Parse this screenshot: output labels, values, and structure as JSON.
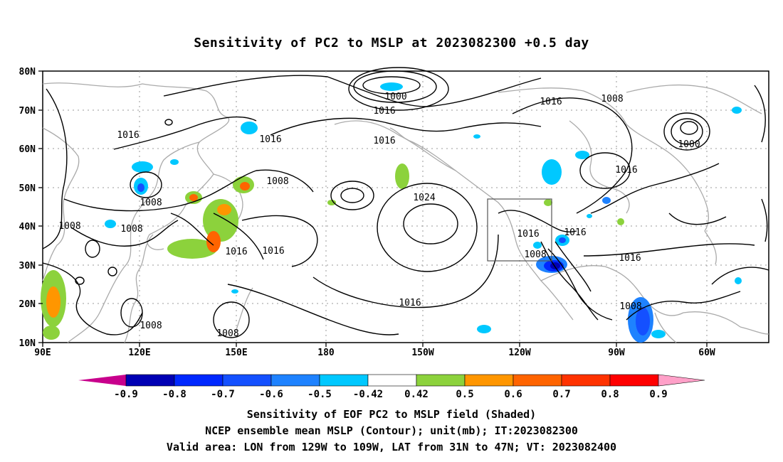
{
  "title": "Sensitivity of PC2 to MSLP at 2023082300 +0.5 day",
  "lat_ticks": [
    "80N",
    "70N",
    "60N",
    "50N",
    "40N",
    "30N",
    "20N",
    "10N"
  ],
  "lon_ticks": [
    "90E",
    "120E",
    "150E",
    "180",
    "150W",
    "120W",
    "90W",
    "60W"
  ],
  "contour_labels": {
    "c1000a": "1000",
    "c1016a": "1016",
    "c1016b": "1016",
    "c1016c": "1016",
    "c1016d": "1016",
    "c1008a": "1008",
    "c1016e": "1016",
    "c1000b": "1000",
    "c1016f": "1016",
    "c1008b": "1008",
    "c1008c": "1008",
    "c1024": "1024",
    "c1008d": "1008",
    "c1008e": "1008",
    "c1016g": "1016",
    "c1016h": "1016",
    "c1016i": "1016",
    "c1016j": "1016",
    "c1008f": "1008",
    "c1016k": "1016",
    "c1016l": "1016",
    "c1008g": "1008",
    "c1008h": "1008",
    "c1008i": "1008"
  },
  "colorbar": {
    "labels": [
      "-0.9",
      "-0.8",
      "-0.7",
      "-0.6",
      "-0.5",
      "-0.42",
      "0.42",
      "0.5",
      "0.6",
      "0.7",
      "0.8",
      "0.9"
    ],
    "colors": [
      "#c8008c",
      "#0000b4",
      "#0028ff",
      "#1450ff",
      "#1e82ff",
      "#00c8ff",
      "#ffffff",
      "#8cd23c",
      "#ff9600",
      "#ff6400",
      "#ff3200",
      "#ff0000",
      "#ffa0c8"
    ]
  },
  "captions": [
    "Sensitivity of EOF PC2 to MSLP field (Shaded)",
    "NCEP ensemble mean MSLP (Contour); unit(mb); IT:2023082300",
    "Valid area: LON from 129W to 109W, LAT from 31N to 47N; VT: 2023082400"
  ]
}
